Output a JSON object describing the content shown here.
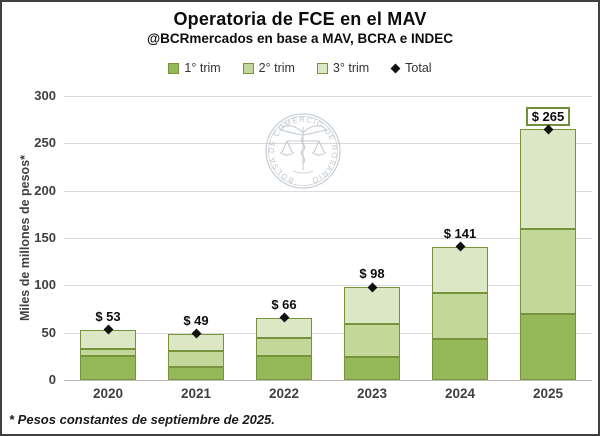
{
  "header": {
    "title": "Operatoria de FCE en el MAV",
    "subtitle": "@BCRmercados en base a MAV, BCRA e INDEC"
  },
  "watermark": {
    "ring_text": "BOLSA DE COMERCIO DE ROSARIO",
    "color": "#c4cad2"
  },
  "footnote": "* Pesos constantes de septiembre de 2025.",
  "chart_data": {
    "type": "bar",
    "stacked": true,
    "title": "Operatoria de FCE en el MAV",
    "subtitle": "@BCRmercados en base a MAV, BCRA e INDEC",
    "categories": [
      "2020",
      "2021",
      "2022",
      "2023",
      "2024",
      "2025"
    ],
    "series": [
      {
        "name": "1° trim",
        "color": "#95B958",
        "values": [
          25,
          14,
          25,
          24,
          43,
          70
        ]
      },
      {
        "name": "2° trim",
        "color": "#C4D79B",
        "values": [
          8,
          17,
          19,
          35,
          49,
          90
        ]
      },
      {
        "name": "3° trim",
        "color": "#DCE7C6",
        "values": [
          20,
          18,
          22,
          39,
          49,
          105
        ]
      }
    ],
    "totals": {
      "name": "Total",
      "marker": "diamond",
      "marker_color": "#111111",
      "values": [
        53,
        49,
        66,
        98,
        141,
        265
      ],
      "labels": [
        "$ 53",
        "$ 49",
        "$ 66",
        "$ 98",
        "$ 141",
        "$ 265"
      ],
      "boxed_label_index": 5
    },
    "segment_border_color": "#77933C",
    "xlabel": "",
    "ylabel": "Miles de millones de pesos*",
    "ylim": [
      0,
      300
    ],
    "yticks": [
      0,
      50,
      100,
      150,
      200,
      250,
      300
    ],
    "grid": true,
    "gridline_color": "#dadada",
    "legend_position": "top"
  }
}
